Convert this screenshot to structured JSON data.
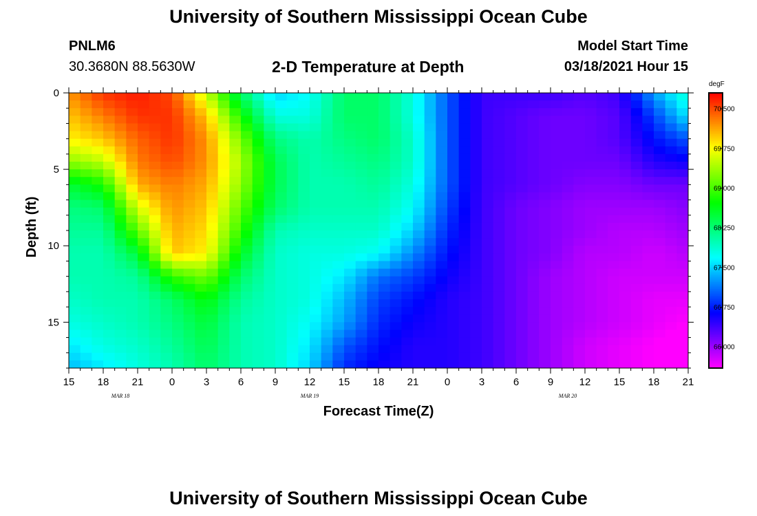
{
  "header": {
    "title": "University of Southern Mississippi Ocean Cube",
    "station": "PNLM6",
    "coordinates": "30.3680N 88.5630W",
    "subtitle": "2-D Temperature at Depth",
    "model_start_label": "Model Start Time",
    "model_start_value": "03/18/2021 Hour 15"
  },
  "footer": {
    "title": "University of Southern Mississippi Ocean Cube"
  },
  "chart_data": {
    "type": "heatmap",
    "xlabel": "Forecast Time(Z)",
    "ylabel": "Depth (ft)",
    "x_tick_labels": [
      "15",
      "18",
      "21",
      "0",
      "3",
      "6",
      "9",
      "12",
      "15",
      "18",
      "21",
      "0",
      "3",
      "6",
      "9",
      "12",
      "15",
      "18",
      "21"
    ],
    "x_date_labels": [
      {
        "label": "MAR 18",
        "hour_offset": 4.5
      },
      {
        "label": "MAR 19",
        "hour_offset": 21
      },
      {
        "label": "MAR 20",
        "hour_offset": 43.5
      }
    ],
    "x_range_hours": [
      0,
      54
    ],
    "y_ticks": [
      0,
      5,
      10,
      15
    ],
    "y_range": [
      0,
      18
    ],
    "colorbar": {
      "unit": "degF",
      "tick_labels": [
        "70.500",
        "69.750",
        "69.000",
        "68.250",
        "67.500",
        "66.750",
        "66.000"
      ],
      "range": [
        65.6,
        70.8
      ]
    },
    "depths_ft": [
      0,
      1.5,
      3,
      4.5,
      6,
      7.5,
      9,
      10.5,
      12,
      13.5,
      15,
      16.5,
      18
    ],
    "hour_offsets": [
      0,
      3,
      6,
      9,
      12,
      15,
      18,
      21,
      24,
      27,
      30,
      33,
      36,
      39,
      42,
      45,
      48,
      51,
      54
    ],
    "temperature_degF": [
      [
        70.2,
        70.6,
        70.7,
        70.5,
        69.5,
        68.3,
        67.5,
        67.7,
        68.3,
        68.3,
        67.8,
        67.0,
        66.4,
        66.4,
        66.4,
        66.3,
        66.4,
        67.3,
        67.9
      ],
      [
        70.0,
        70.3,
        70.6,
        70.6,
        70.0,
        68.8,
        67.8,
        67.8,
        68.3,
        68.3,
        67.8,
        67.0,
        66.4,
        66.3,
        66.2,
        66.2,
        66.3,
        66.9,
        67.6
      ],
      [
        69.8,
        70.0,
        70.4,
        70.6,
        70.2,
        69.2,
        68.2,
        68.0,
        68.2,
        68.3,
        67.9,
        67.0,
        66.4,
        66.3,
        66.2,
        66.2,
        66.3,
        66.7,
        67.0
      ],
      [
        69.3,
        69.5,
        70.3,
        70.5,
        70.2,
        69.4,
        68.4,
        68.0,
        68.1,
        68.2,
        67.9,
        67.0,
        66.4,
        66.3,
        66.2,
        66.2,
        66.2,
        66.5,
        66.6
      ],
      [
        68.5,
        68.8,
        70.1,
        70.3,
        70.1,
        69.3,
        68.4,
        68.0,
        68.0,
        68.1,
        67.8,
        67.0,
        66.4,
        66.3,
        66.2,
        66.1,
        66.1,
        66.2,
        66.2
      ],
      [
        68.2,
        68.3,
        69.6,
        70.2,
        70.0,
        69.1,
        68.3,
        68.0,
        68.0,
        68.0,
        67.7,
        66.9,
        66.4,
        66.2,
        66.1,
        66.0,
        66.0,
        66.0,
        66.1
      ],
      [
        68.1,
        68.1,
        69.1,
        70.1,
        69.9,
        68.9,
        68.0,
        67.9,
        67.9,
        67.9,
        67.5,
        66.8,
        66.4,
        66.2,
        66.1,
        66.0,
        65.9,
        65.9,
        66.0
      ],
      [
        68.0,
        68.0,
        68.5,
        70.0,
        69.8,
        68.6,
        67.9,
        67.8,
        67.8,
        67.7,
        67.2,
        66.7,
        66.4,
        66.2,
        66.1,
        65.9,
        65.9,
        65.8,
        65.9
      ],
      [
        68.0,
        68.0,
        68.1,
        68.9,
        69.2,
        68.3,
        67.9,
        67.8,
        67.6,
        67.1,
        66.9,
        66.6,
        66.4,
        66.2,
        66.0,
        65.9,
        65.8,
        65.8,
        65.8
      ],
      [
        67.9,
        68.0,
        68.0,
        68.3,
        68.7,
        68.1,
        67.9,
        67.8,
        67.4,
        66.9,
        66.7,
        66.5,
        66.4,
        66.2,
        66.0,
        65.9,
        65.8,
        65.7,
        65.7
      ],
      [
        67.8,
        67.9,
        68.0,
        68.2,
        68.5,
        68.0,
        67.9,
        67.7,
        67.3,
        66.8,
        66.6,
        66.5,
        66.4,
        66.2,
        66.0,
        65.9,
        65.8,
        65.7,
        65.6
      ],
      [
        67.6,
        67.8,
        67.9,
        68.1,
        68.4,
        68.0,
        67.9,
        67.6,
        67.0,
        66.7,
        66.5,
        66.5,
        66.4,
        66.2,
        66.0,
        65.8,
        65.7,
        65.6,
        65.5
      ],
      [
        67.4,
        67.6,
        67.8,
        68.0,
        68.3,
        68.0,
        67.9,
        67.5,
        66.8,
        66.6,
        66.5,
        66.5,
        66.4,
        66.2,
        66.0,
        65.8,
        65.7,
        65.6,
        65.5
      ]
    ]
  }
}
